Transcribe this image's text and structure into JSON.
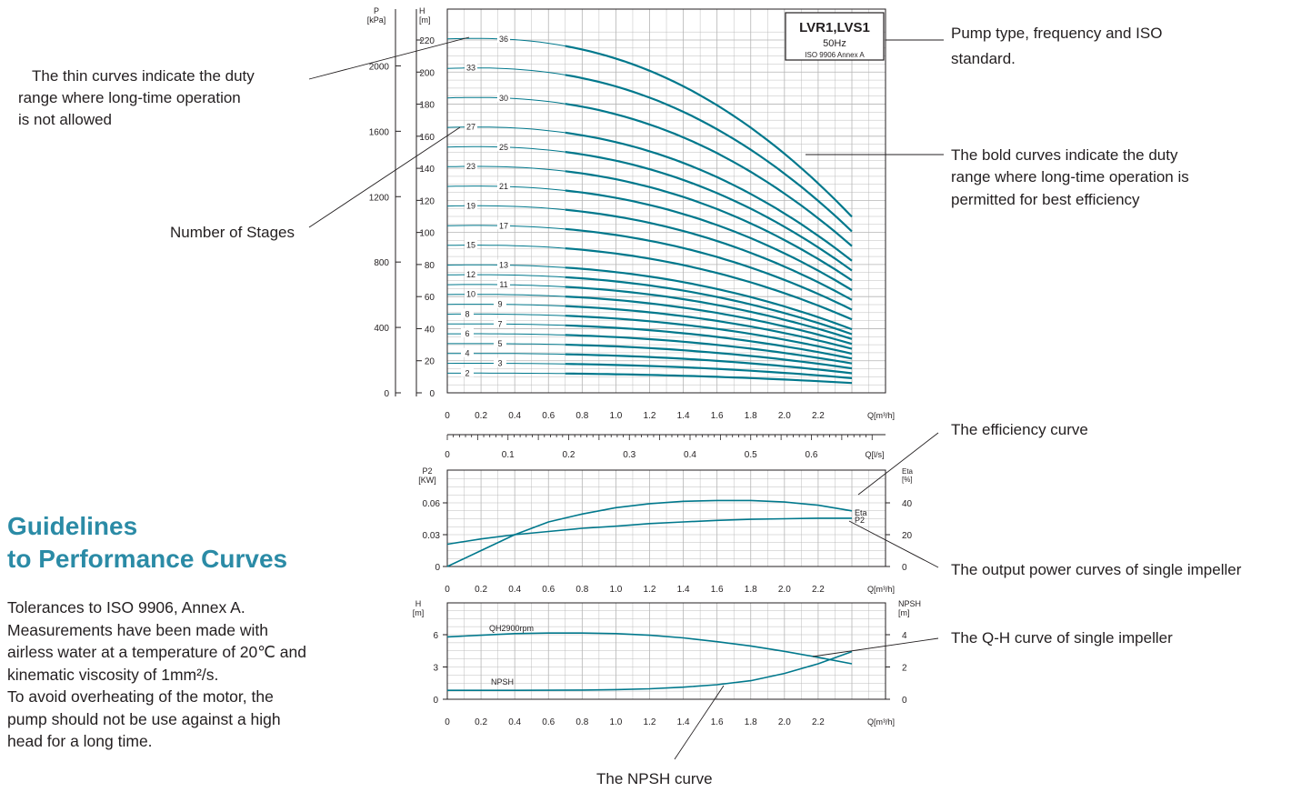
{
  "heading": {
    "line1": "Guidelines",
    "line2": "to Performance Curves"
  },
  "notes": [
    "Tolerances to ISO 9906, Annex A.",
    "Measurements have been made with",
    "airless water at a temperature of 20℃ and",
    "kinematic viscosity of 1mm²/s.",
    "To avoid overheating of the motor, the",
    "pump should not be use against a high",
    "head for a long time."
  ],
  "annotations": {
    "thin_curves": [
      "The thin curves indicate the duty",
      "range where long-time operation",
      "is not allowed"
    ],
    "stages": "Number of Stages",
    "pump_type": [
      "Pump type, frequency and ISO",
      "standard."
    ],
    "bold_curves": [
      "The bold curves indicate the duty",
      "range where long-time operation is",
      "permitted for best efficiency"
    ],
    "efficiency": "The efficiency curve",
    "output_power": "The output power curves of single impeller",
    "qh_single": "The Q-H curve of single impeller",
    "npsh": "The NPSH curve"
  },
  "colors": {
    "curve": "#00788c",
    "heading": "#2b8ba6",
    "grid": "#b5b5b5",
    "axis": "#231f20"
  },
  "chart_data": [
    {
      "type": "line",
      "title_box": {
        "model": "LVR1,LVS1",
        "frequency": "50Hz",
        "standard": "ISO 9906 Annex A"
      },
      "xlabel": "Q[m³/h]",
      "ylabel_left": "P\n[kPa]",
      "ylabel_right": "H\n[m]",
      "x_ticks": [
        "0",
        "0.2",
        "0.4",
        "0.6",
        "0.8",
        "1.0",
        "1.2",
        "1.4",
        "1.6",
        "1.8",
        "2.0",
        "2.2"
      ],
      "xlim": [
        0,
        2.5
      ],
      "ylim": [
        0,
        225
      ],
      "h_ticks": [
        "0",
        "20",
        "40",
        "60",
        "80",
        "100",
        "120",
        "140",
        "160",
        "180",
        "200",
        "220"
      ],
      "p_ticks": [
        "0",
        "400",
        "800",
        "1200",
        "1600",
        "2000"
      ],
      "secondary_x": {
        "label": "Q[l/s]",
        "ticks": [
          "0",
          "0.1",
          "0.2",
          "0.3",
          "0.4",
          "0.5",
          "0.6"
        ]
      },
      "allowed_range": [
        0.7,
        2.4
      ],
      "shutoff_head_per_stage": 6.13,
      "end_head_per_stage": 3.05,
      "series": [
        {
          "name": "2",
          "stages": 2
        },
        {
          "name": "3",
          "stages": 3
        },
        {
          "name": "4",
          "stages": 4
        },
        {
          "name": "5",
          "stages": 5
        },
        {
          "name": "6",
          "stages": 6
        },
        {
          "name": "7",
          "stages": 7
        },
        {
          "name": "8",
          "stages": 8
        },
        {
          "name": "9",
          "stages": 9
        },
        {
          "name": "10",
          "stages": 10
        },
        {
          "name": "11",
          "stages": 11
        },
        {
          "name": "12",
          "stages": 12
        },
        {
          "name": "13",
          "stages": 13
        },
        {
          "name": "15",
          "stages": 15
        },
        {
          "name": "17",
          "stages": 17
        },
        {
          "name": "19",
          "stages": 19
        },
        {
          "name": "21",
          "stages": 21
        },
        {
          "name": "23",
          "stages": 23
        },
        {
          "name": "25",
          "stages": 25
        },
        {
          "name": "27",
          "stages": 27
        },
        {
          "name": "30",
          "stages": 30
        },
        {
          "name": "33",
          "stages": 33
        },
        {
          "name": "36",
          "stages": 36
        }
      ],
      "grid": true
    },
    {
      "type": "line",
      "xlabel": "Q[m³/h]",
      "ylabel_left": "P2\n[KW]",
      "ylabel_right": "Eta\n[%]",
      "x_ticks": [
        "0",
        "0.2",
        "0.4",
        "0.6",
        "0.8",
        "1.0",
        "1.2",
        "1.4",
        "1.6",
        "1.8",
        "2.0",
        "2.2"
      ],
      "xlim": [
        0,
        2.5
      ],
      "p2_ticks": [
        "0",
        "0.03",
        "0.06"
      ],
      "eta_ticks": [
        "0",
        "20",
        "40"
      ],
      "ylim_p2": [
        0,
        0.09
      ],
      "ylim_eta": [
        0,
        60
      ],
      "series": [
        {
          "name": "Eta",
          "axis": "eta",
          "x": [
            0,
            0.2,
            0.4,
            0.6,
            0.8,
            1.0,
            1.2,
            1.4,
            1.6,
            1.8,
            2.0,
            2.2,
            2.4
          ],
          "y": [
            0,
            10,
            20,
            28,
            33,
            37,
            39.5,
            41,
            41.5,
            41.5,
            40.5,
            38.5,
            35
          ]
        },
        {
          "name": "P2",
          "axis": "p2",
          "x": [
            0,
            0.2,
            0.4,
            0.6,
            0.8,
            1.0,
            1.2,
            1.4,
            1.6,
            1.8,
            2.0,
            2.2,
            2.4
          ],
          "y": [
            0.021,
            0.026,
            0.03,
            0.033,
            0.036,
            0.038,
            0.0405,
            0.042,
            0.0435,
            0.0445,
            0.045,
            0.0455,
            0.0455
          ]
        }
      ],
      "grid": true
    },
    {
      "type": "line",
      "xlabel": "Q[m³/h]",
      "ylabel_left": "H\n[m]",
      "ylabel_right": "NPSH\n[m]",
      "x_ticks": [
        "0",
        "0.2",
        "0.4",
        "0.6",
        "0.8",
        "1.0",
        "1.2",
        "1.4",
        "1.6",
        "1.8",
        "2.0",
        "2.2"
      ],
      "xlim": [
        0,
        2.5
      ],
      "h_ticks": [
        "0",
        "3",
        "6"
      ],
      "npsh_ticks": [
        "0",
        "2",
        "4"
      ],
      "ylim_h": [
        0,
        8.4
      ],
      "ylim_npsh": [
        0,
        5.6
      ],
      "series": [
        {
          "name": "QH2900rpm",
          "axis": "h",
          "x": [
            0,
            0.2,
            0.4,
            0.6,
            0.8,
            1.0,
            1.2,
            1.4,
            1.6,
            1.8,
            2.0,
            2.2,
            2.4
          ],
          "y": [
            5.8,
            5.95,
            6.1,
            6.15,
            6.15,
            6.1,
            5.95,
            5.7,
            5.35,
            4.95,
            4.45,
            3.9,
            3.3
          ]
        },
        {
          "name": "NPSH",
          "axis": "npsh",
          "x": [
            0,
            0.2,
            0.4,
            0.6,
            0.8,
            1.0,
            1.2,
            1.4,
            1.6,
            1.8,
            2.0,
            2.2,
            2.4
          ],
          "y": [
            0.55,
            0.55,
            0.55,
            0.56,
            0.57,
            0.6,
            0.65,
            0.75,
            0.9,
            1.15,
            1.6,
            2.2,
            2.95
          ]
        }
      ],
      "grid": true
    }
  ]
}
